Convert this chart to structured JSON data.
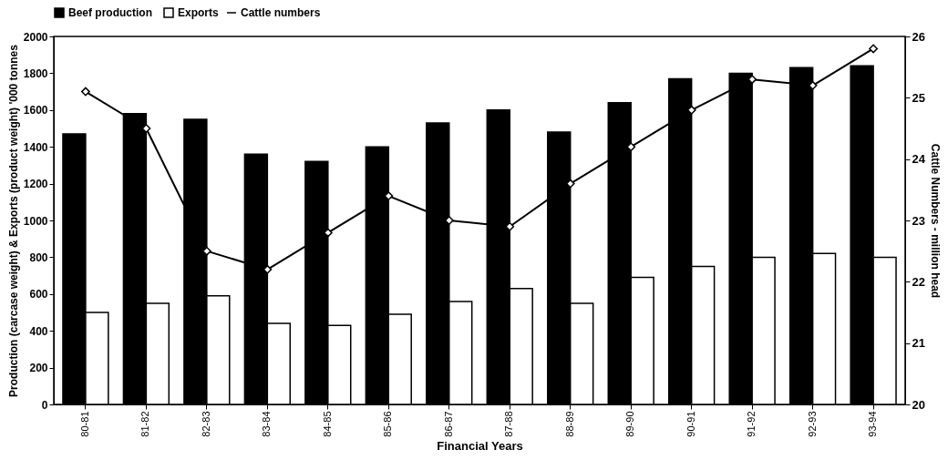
{
  "chart_data": {
    "type": "bar",
    "xlabel": "Financial Years",
    "ylabel": "Production (carcase weight) & Exports (product weight) '000 tonnes",
    "y2label": "Cattle Numbers - million head",
    "categories": [
      "80-81",
      "81-82",
      "82-83",
      "83-84",
      "84-85",
      "85-86",
      "86-87",
      "87-88",
      "88-89",
      "89-90",
      "90-91",
      "91-92",
      "92-93",
      "93-94"
    ],
    "series": [
      {
        "name": "Beef production",
        "color": "#000000",
        "values": [
          1470,
          1580,
          1550,
          1360,
          1320,
          1400,
          1530,
          1600,
          1480,
          1640,
          1770,
          1800,
          1830,
          1840
        ]
      },
      {
        "name": "Exports",
        "color": "#ffffff",
        "values": [
          500,
          550,
          590,
          440,
          430,
          490,
          560,
          630,
          550,
          690,
          750,
          800,
          820,
          800
        ]
      },
      {
        "name": "Cattle numbers",
        "type": "line",
        "axis": "y2",
        "color": "#000000",
        "marker": "diamond",
        "values": [
          25.1,
          24.5,
          22.5,
          22.2,
          22.8,
          23.4,
          23.0,
          22.9,
          23.6,
          24.2,
          24.8,
          25.3,
          25.2,
          25.8
        ]
      }
    ],
    "ylim": [
      0,
      2000
    ],
    "yticks": [
      0,
      200,
      400,
      600,
      800,
      1000,
      1200,
      1400,
      1600,
      1800,
      2000
    ],
    "y2lim": [
      20,
      26
    ],
    "y2ticks": [
      20,
      21,
      22,
      23,
      24,
      25,
      26
    ],
    "legend": "top",
    "grid": false
  }
}
